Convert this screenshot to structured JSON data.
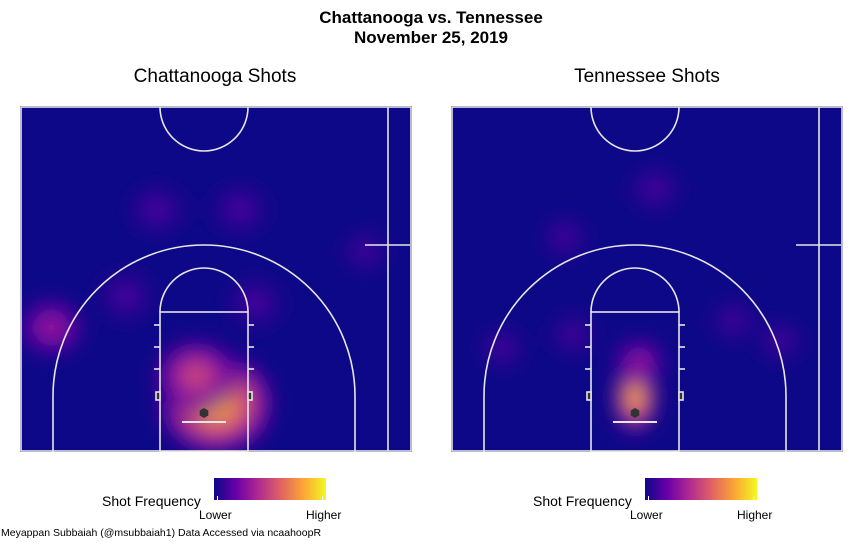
{
  "header": {
    "title_line1": "Chattanooga vs. Tennessee",
    "title_line2": "November 25, 2019"
  },
  "caption": "Meyappan Subbaiah (@msubbaiah1) Data Accessed via ncaahoopR",
  "colors": {
    "scale_low": "#0d0887",
    "scale_high": "#f0f921",
    "court_lines": "#e6e6e6",
    "hoop": "#333333"
  },
  "chart_data": [
    {
      "type": "heatmap",
      "title": "Chattanooga Shots",
      "legend": {
        "title": "Shot Frequency",
        "low_label": "Lower",
        "high_label": "Higher",
        "placement": "bottom"
      },
      "grid": false,
      "hotspots": [
        {
          "x": 0.5,
          "y": 0.86,
          "intensity": 1.0,
          "spread": 0.16
        },
        {
          "x": 0.45,
          "y": 0.78,
          "intensity": 0.55,
          "spread": 0.12
        },
        {
          "x": 0.08,
          "y": 0.64,
          "intensity": 0.3,
          "spread": 0.1
        },
        {
          "x": 0.27,
          "y": 0.55,
          "intensity": 0.2,
          "spread": 0.1
        },
        {
          "x": 0.6,
          "y": 0.57,
          "intensity": 0.18,
          "spread": 0.1
        },
        {
          "x": 0.35,
          "y": 0.3,
          "intensity": 0.14,
          "spread": 0.1
        },
        {
          "x": 0.56,
          "y": 0.3,
          "intensity": 0.14,
          "spread": 0.1
        },
        {
          "x": 0.88,
          "y": 0.42,
          "intensity": 0.12,
          "spread": 0.08
        }
      ]
    },
    {
      "type": "heatmap",
      "title": "Tennessee Shots",
      "legend": {
        "title": "Shot Frequency",
        "low_label": "Lower",
        "high_label": "Higher",
        "placement": "bottom"
      },
      "grid": false,
      "hotspots": [
        {
          "x": 0.47,
          "y": 0.84,
          "intensity": 1.0,
          "spread": 0.06
        },
        {
          "x": 0.48,
          "y": 0.74,
          "intensity": 0.45,
          "spread": 0.08
        },
        {
          "x": 0.13,
          "y": 0.7,
          "intensity": 0.18,
          "spread": 0.08
        },
        {
          "x": 0.31,
          "y": 0.66,
          "intensity": 0.18,
          "spread": 0.08
        },
        {
          "x": 0.72,
          "y": 0.62,
          "intensity": 0.16,
          "spread": 0.08
        },
        {
          "x": 0.84,
          "y": 0.68,
          "intensity": 0.14,
          "spread": 0.08
        },
        {
          "x": 0.29,
          "y": 0.38,
          "intensity": 0.13,
          "spread": 0.08
        },
        {
          "x": 0.52,
          "y": 0.24,
          "intensity": 0.12,
          "spread": 0.09
        }
      ]
    }
  ]
}
